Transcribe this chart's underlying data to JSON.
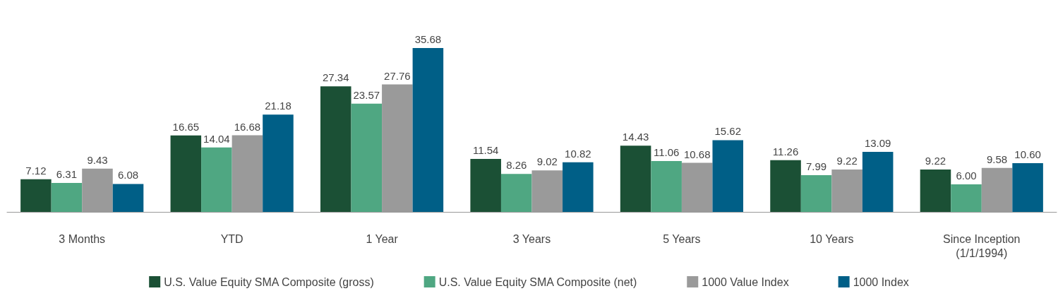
{
  "chart_data": {
    "type": "bar",
    "categories": [
      "3 Months",
      "YTD",
      "1 Year",
      "3 Years",
      "5 Years",
      "10 Years",
      "Since Inception\n(1/1/1994)"
    ],
    "series": [
      {
        "name": "U.S. Value Equity SMA Composite (gross)",
        "color": "#1b5035",
        "values": [
          7.12,
          16.65,
          27.34,
          11.54,
          14.43,
          11.26,
          9.22
        ],
        "value_labels": [
          "7.12",
          "16.65",
          "27.34",
          "11.54",
          "14.43",
          "11.26",
          "9.22"
        ]
      },
      {
        "name": "U.S. Value Equity SMA Composite (net)",
        "color": "#4fa782",
        "values": [
          6.31,
          14.04,
          23.57,
          8.26,
          11.06,
          7.99,
          6.0
        ],
        "value_labels": [
          "6.31",
          "14.04",
          "23.57",
          "8.26",
          "11.06",
          "7.99",
          "6.00"
        ]
      },
      {
        "name": "1000 Value Index",
        "color": "#9a9a9a",
        "values": [
          9.43,
          16.68,
          27.76,
          9.02,
          10.68,
          9.22,
          9.58
        ],
        "value_labels": [
          "9.43",
          "16.68",
          "27.76",
          "9.02",
          "10.68",
          "9.22",
          "9.58"
        ]
      },
      {
        "name": "1000 Index",
        "color": "#005f87",
        "values": [
          6.08,
          21.18,
          35.68,
          10.82,
          15.62,
          13.09,
          10.6
        ],
        "value_labels": [
          "6.08",
          "21.18",
          "35.68",
          "10.82",
          "15.62",
          "13.09",
          "10.60"
        ]
      }
    ],
    "legend": "bottom"
  }
}
